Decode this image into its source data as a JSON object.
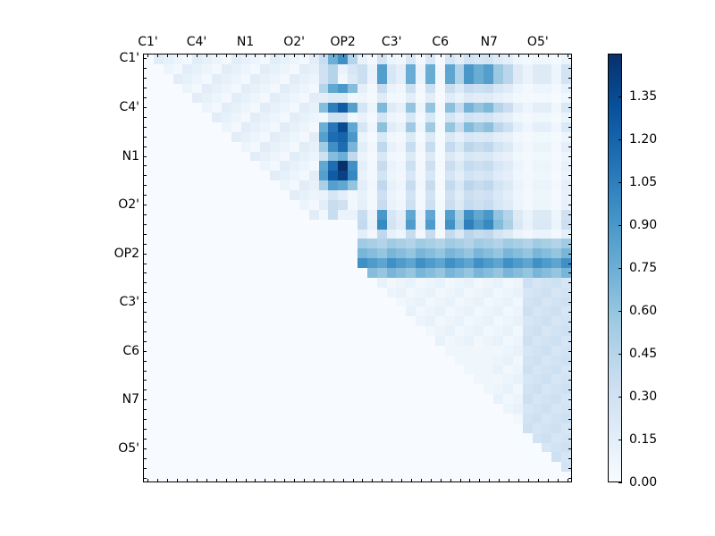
{
  "chart_data": {
    "type": "heatmap",
    "title": "",
    "xlabel": "",
    "ylabel": "",
    "n": 44,
    "tick_labels": [
      "C1'",
      "C4'",
      "N1",
      "O2'",
      "OP2",
      "C3'",
      "C6",
      "N7",
      "O5'"
    ],
    "tick_label_positions": [
      0,
      5,
      10,
      15,
      20,
      25,
      30,
      35,
      40
    ],
    "x_axis_position": "top",
    "colormap": "Blues",
    "colorbar": {
      "vmin": 0.0,
      "vmax": 1.5,
      "ticks": [
        "0.00",
        "0.15",
        "0.30",
        "0.45",
        "0.60",
        "0.75",
        "0.90",
        "1.05",
        "1.20",
        "1.35"
      ],
      "tick_values": [
        0.0,
        0.15,
        0.3,
        0.45,
        0.6,
        0.75,
        0.9,
        1.05,
        1.2,
        1.35
      ]
    },
    "col_profile_22_43": [
      0.35,
      0.1,
      0.9,
      0.25,
      0.15,
      0.8,
      0.1,
      0.8,
      0.05,
      0.85,
      0.5,
      0.95,
      0.8,
      0.9,
      0.6,
      0.45,
      0.2,
      0.1,
      0.2,
      0.2,
      0.08,
      0.3,
      0.15
    ],
    "matrix_note": "row-major 44x44 upper-triangular-ish correlation values"
  }
}
